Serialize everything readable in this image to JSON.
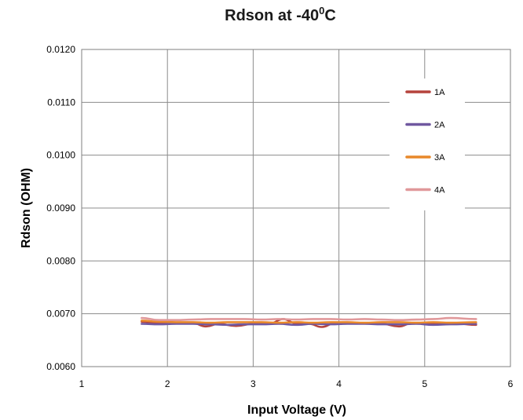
{
  "chart_data": {
    "type": "line",
    "title": "Rdson at -40",
    "title_superscript": "0",
    "title_suffix": "C",
    "xlabel": "Input Voltage (V)",
    "ylabel": "Rdson (OHM)",
    "xlim": [
      1,
      6
    ],
    "ylim": [
      0.006,
      0.012
    ],
    "xticks": [
      "1",
      "2",
      "3",
      "4",
      "5",
      "6"
    ],
    "yticks": [
      "0.0060",
      "0.0070",
      "0.0080",
      "0.0090",
      "0.0100",
      "0.0110",
      "0.0120"
    ],
    "grid": true,
    "legend_position": "top-right",
    "series": [
      {
        "name": "1A",
        "color": "#b5433c",
        "x": [
          1.7,
          1.9,
          2.1,
          2.3,
          2.45,
          2.6,
          2.8,
          3.0,
          3.2,
          3.35,
          3.5,
          3.65,
          3.8,
          3.95,
          4.1,
          4.3,
          4.5,
          4.7,
          4.85,
          5.0,
          5.2,
          5.4,
          5.6
        ],
        "y": [
          0.00685,
          0.00682,
          0.00683,
          0.00682,
          0.00676,
          0.00681,
          0.00677,
          0.00681,
          0.00682,
          0.0069,
          0.00682,
          0.00681,
          0.00675,
          0.00682,
          0.00683,
          0.00682,
          0.00681,
          0.00676,
          0.00682,
          0.00682,
          0.00682,
          0.00681,
          0.00679
        ]
      },
      {
        "name": "2A",
        "color": "#7058a0",
        "x": [
          1.7,
          1.9,
          2.1,
          2.3,
          2.5,
          2.7,
          2.9,
          3.1,
          3.3,
          3.5,
          3.7,
          3.9,
          4.1,
          4.3,
          4.5,
          4.7,
          4.9,
          5.1,
          5.3,
          5.6
        ],
        "y": [
          0.00681,
          0.0068,
          0.00681,
          0.00681,
          0.0068,
          0.00679,
          0.0068,
          0.0068,
          0.00681,
          0.00679,
          0.00681,
          0.0068,
          0.00681,
          0.00681,
          0.0068,
          0.0068,
          0.00681,
          0.00679,
          0.0068,
          0.00681
        ]
      },
      {
        "name": "3A",
        "color": "#e8882a",
        "x": [
          1.7,
          1.9,
          2.1,
          2.3,
          2.5,
          2.7,
          2.9,
          3.1,
          3.3,
          3.5,
          3.7,
          3.9,
          4.1,
          4.3,
          4.5,
          4.7,
          4.9,
          5.1,
          5.3,
          5.6
        ],
        "y": [
          0.00687,
          0.00685,
          0.00684,
          0.00684,
          0.00683,
          0.00684,
          0.00684,
          0.00684,
          0.00683,
          0.00684,
          0.00683,
          0.00684,
          0.00684,
          0.00683,
          0.00684,
          0.00684,
          0.00683,
          0.00684,
          0.00683,
          0.00684
        ]
      },
      {
        "name": "4A",
        "color": "#e0989a",
        "x": [
          1.7,
          1.9,
          2.1,
          2.3,
          2.5,
          2.7,
          2.9,
          3.1,
          3.3,
          3.5,
          3.7,
          3.9,
          4.1,
          4.3,
          4.5,
          4.7,
          4.9,
          5.1,
          5.3,
          5.6
        ],
        "y": [
          0.00692,
          0.00688,
          0.00688,
          0.00689,
          0.0069,
          0.0069,
          0.0069,
          0.00689,
          0.0069,
          0.00689,
          0.0069,
          0.0069,
          0.00689,
          0.0069,
          0.00689,
          0.00688,
          0.00689,
          0.0069,
          0.00692,
          0.0069
        ]
      }
    ]
  }
}
